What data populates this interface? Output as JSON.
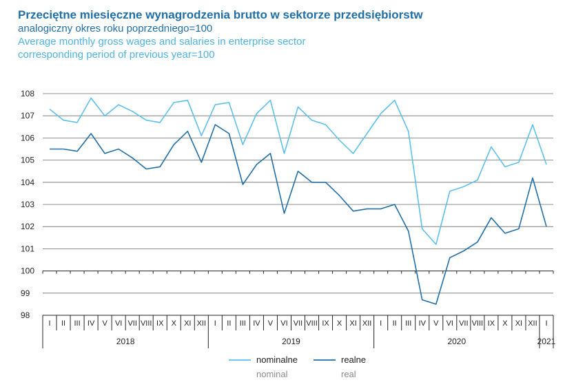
{
  "chart_data": {
    "type": "line",
    "title": "Przeciętne miesięczne wynagrodzenia brutto w sektorze przedsiębiorstw",
    "subtitle_pl": "analogiczny okres roku poprzedniego=100",
    "title_en": "Average monthly gross wages and salaries in enterprise sector",
    "subtitle_en": "corresponding period of previous year=100",
    "ylim": [
      98,
      108
    ],
    "yticks": [
      "98",
      "99",
      "100",
      "101",
      "102",
      "103",
      "104",
      "105",
      "106",
      "107",
      "108"
    ],
    "months": [
      "I",
      "II",
      "III",
      "IV",
      "V",
      "VI",
      "VII",
      "VIII",
      "IX",
      "X",
      "XI",
      "XII",
      "I",
      "II",
      "III",
      "IV",
      "V",
      "VI",
      "VII",
      "VIII",
      "IX",
      "X",
      "XI",
      "XII",
      "I",
      "II",
      "III",
      "IV",
      "V",
      "VI",
      "VII",
      "VIII",
      "IX",
      "X",
      "XI",
      "XII",
      "I"
    ],
    "years": [
      {
        "label": "2018",
        "start": 0,
        "end": 11
      },
      {
        "label": "2019",
        "start": 12,
        "end": 23
      },
      {
        "label": "2020",
        "start": 24,
        "end": 35
      },
      {
        "label": "2021",
        "start": 36,
        "end": 36
      }
    ],
    "series": [
      {
        "name": "nominalne",
        "name_en": "nominal",
        "color": "#5bc0eb",
        "values": [
          107.3,
          106.8,
          106.7,
          107.8,
          107.0,
          107.5,
          107.2,
          106.8,
          106.7,
          107.6,
          107.7,
          106.1,
          107.5,
          107.6,
          105.7,
          107.1,
          107.7,
          105.3,
          107.4,
          106.8,
          106.6,
          105.9,
          105.3,
          106.2,
          107.1,
          107.7,
          106.3,
          101.9,
          101.2,
          103.6,
          103.8,
          104.1,
          105.6,
          104.7,
          104.9,
          106.6,
          104.8
        ]
      },
      {
        "name": "realne",
        "name_en": "real",
        "color": "#1f6ea8",
        "values": [
          105.5,
          105.5,
          105.4,
          106.2,
          105.3,
          105.5,
          105.1,
          104.6,
          104.7,
          105.7,
          106.3,
          104.9,
          106.6,
          106.2,
          103.9,
          104.8,
          105.3,
          102.6,
          104.5,
          104.0,
          104.0,
          103.4,
          102.7,
          102.8,
          102.8,
          103.0,
          101.8,
          98.7,
          98.5,
          100.6,
          100.9,
          101.3,
          102.4,
          101.7,
          101.9,
          104.2,
          102.0
        ]
      }
    ]
  }
}
